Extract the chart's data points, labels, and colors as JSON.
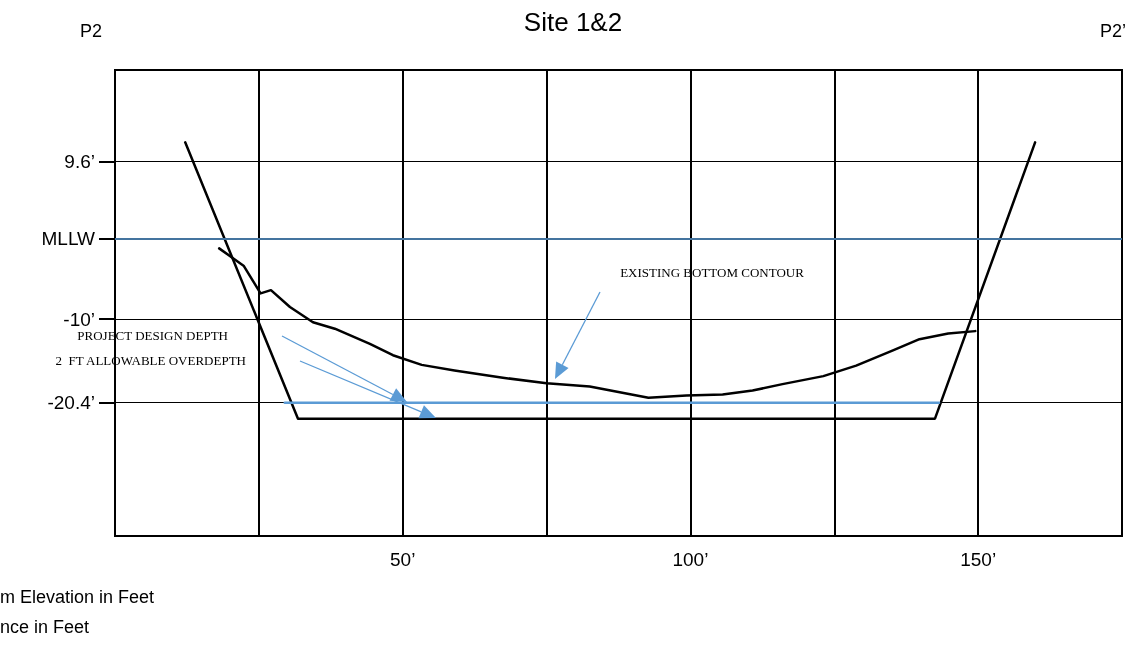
{
  "chart_data": {
    "type": "line",
    "title": "Site 1&2",
    "annotations": [
      "P2",
      "P2’",
      "m Elevation in Feet",
      "nce in Feet",
      "EXISTING BOTTOM CONTOUR",
      "PROJECT DESIGN DEPTH",
      "2  FT ALLOWABLE OVERDEPTH"
    ],
    "series": [
      {
        "color": "#000000",
        "x": [
          12.2,
          31.8,
          142.5,
          159.9
        ],
        "values": [
          12,
          -22.4,
          -22.4,
          12
        ]
      },
      {
        "color": "#000000",
        "x": [
          18.1,
          22.4,
          25.3,
          27.1,
          30.4,
          34.4,
          38.2,
          44.3,
          48.3,
          53.3,
          59.0,
          67.4,
          75.0,
          82.5,
          92.7,
          99.3,
          105.6,
          110.8,
          116.0,
          123.1,
          128.8,
          135.2,
          139.8,
          144.8,
          149.5
        ],
        "values": [
          -1.2,
          -3.4,
          -6.8,
          -6.4,
          -8.5,
          -10.4,
          -11.2,
          -13.1,
          -14.5,
          -15.7,
          -16.4,
          -17.3,
          -18.0,
          -18.4,
          -19.8,
          -19.5,
          -19.4,
          -18.9,
          -18.1,
          -17.1,
          -15.8,
          -13.9,
          -12.5,
          -11.8,
          -11.5
        ]
      },
      {
        "color": "#5b9bd5",
        "x": [
          29.5,
          143.2
        ],
        "values": [
          -20.4,
          -20.4
        ]
      }
    ],
    "xlim": [
      0,
      175
    ],
    "xticks": [
      {
        "value": 25,
        "label": null
      },
      {
        "value": 50,
        "label": "50’"
      },
      {
        "value": 75,
        "label": null
      },
      {
        "value": 100,
        "label": "100’"
      },
      {
        "value": 125,
        "label": null
      },
      {
        "value": 150,
        "label": "150’"
      }
    ],
    "ylim": [
      -37,
      21
    ],
    "yticks": [
      {
        "value": -20.4,
        "label": "-20.4’"
      },
      {
        "value": -10,
        "label": "-10’"
      },
      {
        "value": 0,
        "label": "MLLW"
      },
      {
        "value": 9.6,
        "label": "9.6’"
      }
    ],
    "ref_lines": [
      {
        "axis": "y",
        "value": 0,
        "color": "#5b9bd5"
      }
    ],
    "grid": true,
    "marker": "none",
    "line_style": "solid"
  }
}
